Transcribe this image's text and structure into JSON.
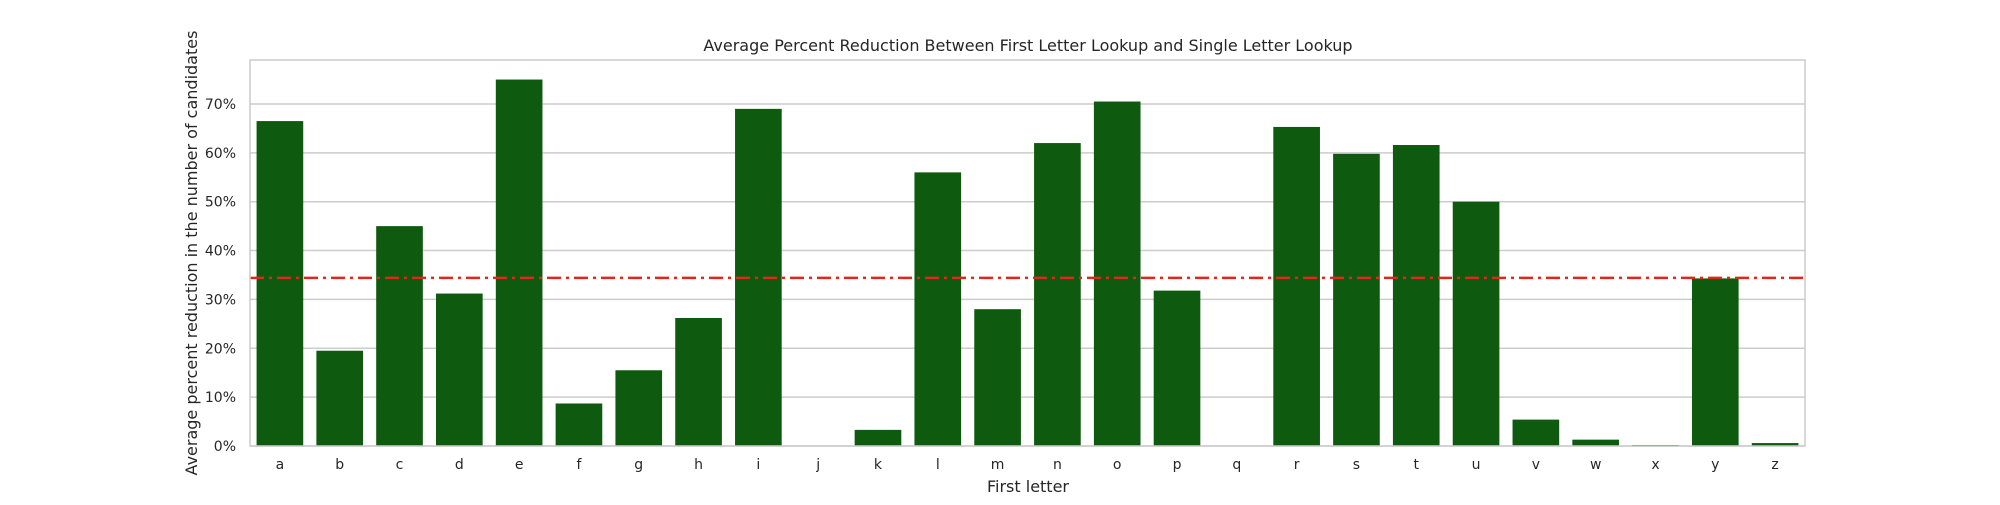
{
  "chart_data": {
    "type": "bar",
    "title": "Average Percent Reduction Between First Letter Lookup and Single Letter Lookup",
    "xlabel": "First letter",
    "ylabel": "Average percent reduction in the number of candidates",
    "categories": [
      "a",
      "b",
      "c",
      "d",
      "e",
      "f",
      "g",
      "h",
      "i",
      "j",
      "k",
      "l",
      "m",
      "n",
      "o",
      "p",
      "q",
      "r",
      "s",
      "t",
      "u",
      "v",
      "w",
      "x",
      "y",
      "z"
    ],
    "values": [
      66.5,
      19.5,
      45.0,
      31.2,
      75.0,
      8.7,
      15.5,
      26.2,
      69.0,
      0.0,
      3.3,
      56.0,
      28.0,
      62.0,
      70.5,
      31.8,
      0.0,
      65.3,
      59.8,
      61.6,
      50.0,
      5.4,
      1.3,
      0.2,
      34.3,
      0.6
    ],
    "ylim": [
      0,
      79
    ],
    "yticks": [
      0,
      10,
      20,
      30,
      40,
      50,
      60,
      70
    ],
    "ytick_labels": [
      "0%",
      "10%",
      "20%",
      "30%",
      "40%",
      "50%",
      "60%",
      "70%"
    ],
    "reference_line": {
      "value": 34.4,
      "color": "#e3261a",
      "style": "dash-dot"
    },
    "bar_color": "#0e5a0e",
    "grid": true
  }
}
